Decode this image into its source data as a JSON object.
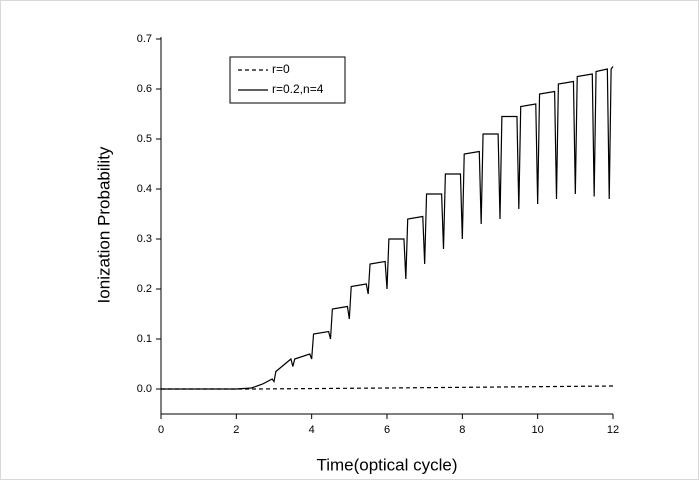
{
  "chart_data": {
    "type": "line",
    "x_label": "Time(optical cycle)",
    "y_label": "Ionization Probability",
    "xlim": [
      0,
      12
    ],
    "xticks": [
      0,
      2,
      4,
      6,
      8,
      10,
      12
    ],
    "ylim": [
      -0.05,
      0.7
    ],
    "yticks": [
      {
        "value": 0,
        "label": "0.0"
      },
      0.1,
      0.2,
      0.3,
      0.4,
      0.5,
      0.6,
      0.7
    ],
    "legend": "upper left",
    "series": [
      {
        "name": "r=0",
        "color": "#000000",
        "dash": true,
        "x": [
          0,
          2.5,
          6,
          9,
          12
        ],
        "values": [
          0,
          0,
          0.002,
          0.004,
          0.006
        ]
      },
      {
        "name": "r=0.2,n=4",
        "color": "#000000",
        "dash": false,
        "x": [
          0,
          2.0,
          2.4,
          2.7,
          2.95,
          3.0,
          3.05,
          3.45,
          3.5,
          3.55,
          3.95,
          4.0,
          4.05,
          4.45,
          4.5,
          4.55,
          4.95,
          5.0,
          5.05,
          5.45,
          5.5,
          5.55,
          5.95,
          6.0,
          6.05,
          6.45,
          6.5,
          6.55,
          6.95,
          7.0,
          7.05,
          7.45,
          7.5,
          7.55,
          7.95,
          8.0,
          8.05,
          8.45,
          8.5,
          8.55,
          8.95,
          9.0,
          9.05,
          9.45,
          9.5,
          9.55,
          9.95,
          10.0,
          10.05,
          10.45,
          10.5,
          10.55,
          10.95,
          11.0,
          11.05,
          11.45,
          11.5,
          11.55,
          11.85,
          11.9,
          11.95,
          12
        ],
        "values": [
          0,
          0,
          0.002,
          0.01,
          0.02,
          0.015,
          0.035,
          0.06,
          0.045,
          0.06,
          0.07,
          0.06,
          0.11,
          0.115,
          0.1,
          0.16,
          0.165,
          0.14,
          0.205,
          0.21,
          0.19,
          0.25,
          0.255,
          0.2,
          0.3,
          0.3,
          0.22,
          0.34,
          0.345,
          0.25,
          0.39,
          0.39,
          0.28,
          0.43,
          0.43,
          0.3,
          0.47,
          0.475,
          0.33,
          0.51,
          0.51,
          0.34,
          0.545,
          0.545,
          0.36,
          0.565,
          0.57,
          0.37,
          0.59,
          0.595,
          0.38,
          0.61,
          0.615,
          0.39,
          0.625,
          0.63,
          0.385,
          0.635,
          0.64,
          0.38,
          0.64,
          0.645
        ]
      }
    ]
  }
}
